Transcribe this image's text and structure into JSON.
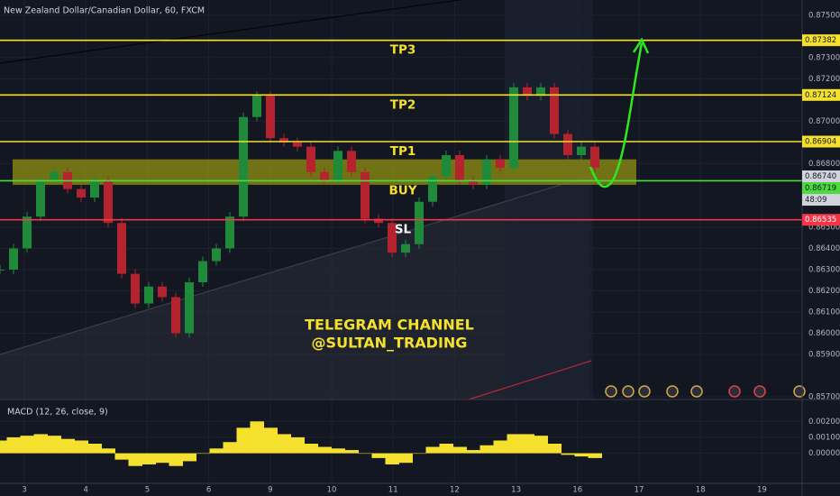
{
  "header": {
    "title": "New Zealand Dollar/Canadian Dollar, 60, FXCM"
  },
  "price_axis": {
    "range": [
      0.85687,
      0.87572
    ],
    "ticks": [
      {
        "value": 0.875,
        "label": "0.87500"
      },
      {
        "value": 0.873,
        "label": "0.87300"
      },
      {
        "value": 0.872,
        "label": "0.87200"
      },
      {
        "value": 0.87,
        "label": "0.87000"
      },
      {
        "value": 0.868,
        "label": "0.86800"
      },
      {
        "value": 0.865,
        "label": "0.86500"
      },
      {
        "value": 0.864,
        "label": "0.86400"
      },
      {
        "value": 0.863,
        "label": "0.86300"
      },
      {
        "value": 0.862,
        "label": "0.86200"
      },
      {
        "value": 0.861,
        "label": "0.86100"
      },
      {
        "value": 0.86,
        "label": "0.86000"
      },
      {
        "value": 0.859,
        "label": "0.85900"
      },
      {
        "value": 0.857,
        "label": "0.85700"
      }
    ]
  },
  "time_axis": {
    "labels": [
      "3",
      "4",
      "5",
      "6",
      "9",
      "10",
      "11",
      "12",
      "13",
      "16",
      "17",
      "18",
      "19"
    ]
  },
  "price_closes": [
    0.863,
    0.864,
    0.8655,
    0.8672,
    0.8676,
    0.8668,
    0.8664,
    0.8672,
    0.8652,
    0.8628,
    0.8614,
    0.8622,
    0.8617,
    0.86,
    0.8624,
    0.8634,
    0.864,
    0.8655,
    0.8702,
    0.8712,
    0.8692,
    0.869,
    0.8688,
    0.8676,
    0.8672,
    0.8686,
    0.8676,
    0.8654,
    0.8652,
    0.8638,
    0.8642,
    0.8662,
    0.8674,
    0.8684,
    0.8672,
    0.867,
    0.8682,
    0.8678,
    0.8716,
    0.8712,
    0.8716,
    0.8694,
    0.8684,
    0.8688,
    0.8678
  ],
  "levels": [
    {
      "name": "TP3",
      "price": 0.87382,
      "color": "#f5e12d"
    },
    {
      "name": "TP2",
      "price": 0.87124,
      "color": "#f5e12d"
    },
    {
      "name": "TP1",
      "price": 0.86904,
      "color": "#f5e12d"
    },
    {
      "name": "BUY",
      "price": 0.86719,
      "color": "#4cda3c"
    },
    {
      "name": "SL",
      "price": 0.86535,
      "color": "#f23645"
    }
  ],
  "zone": [
    0.8682,
    0.867
  ],
  "current_price": {
    "value": 0.8674,
    "label": "0.86740"
  },
  "countdown": "48:09",
  "annotation": [
    "TELEGRAM CHANNEL",
    "@SULTAN_TRADING"
  ],
  "macd": {
    "title": "MACD (12, 26, close, 9)",
    "range": [
      -0.00189,
      0.00309
    ],
    "ticks": [
      {
        "value": 0.002,
        "label": "0.00200"
      },
      {
        "value": 0.001,
        "label": "0.00100"
      },
      {
        "value": 0,
        "label": "0.00000"
      }
    ],
    "values": [
      0.0008,
      0.001,
      0.0011,
      0.0012,
      0.0011,
      0.0009,
      0.0008,
      0.0006,
      0.0003,
      -0.0004,
      -0.0008,
      -0.0007,
      -0.0006,
      -0.0008,
      -0.0005,
      0.0,
      0.0003,
      0.0007,
      0.0016,
      0.002,
      0.0016,
      0.0012,
      0.001,
      0.0006,
      0.0004,
      0.0003,
      0.0002,
      0.0,
      -0.0003,
      -0.0007,
      -0.0006,
      0.0,
      0.0004,
      0.0006,
      0.0004,
      0.0002,
      0.0005,
      0.0008,
      0.0012,
      0.0012,
      0.0011,
      0.0006,
      -0.0001,
      -0.0002,
      -0.0003
    ],
    "color": "#f5e12d"
  }
}
